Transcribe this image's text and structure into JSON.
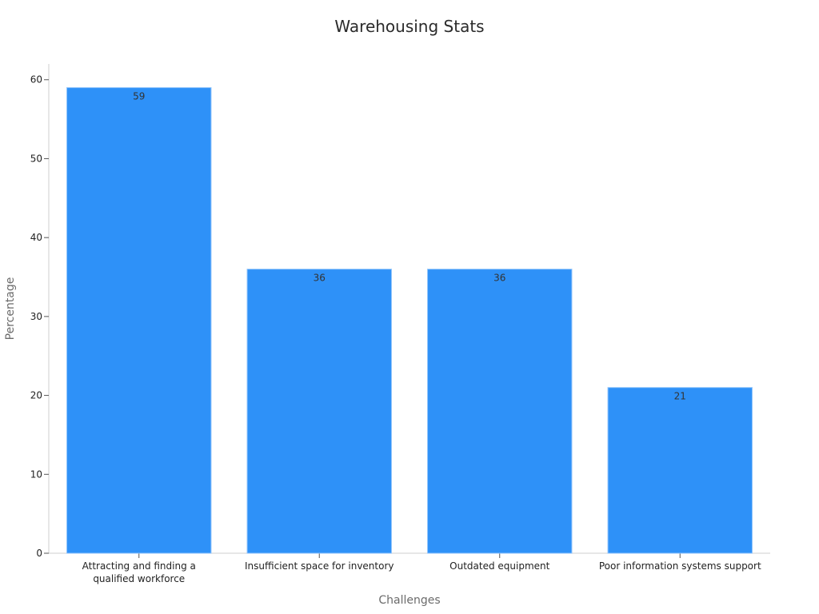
{
  "chart_data": {
    "type": "bar",
    "title": "Warehousing Stats",
    "xlabel": "Challenges",
    "ylabel": "Percentage",
    "categories": [
      [
        "Attracting and finding a",
        "qualified workforce"
      ],
      [
        "Insufficient space for inventory"
      ],
      [
        "Outdated equipment"
      ],
      [
        "Poor information systems support"
      ]
    ],
    "values": [
      59,
      36,
      36,
      21
    ],
    "ylim": [
      0,
      62
    ],
    "yticks": [
      0,
      10,
      20,
      30,
      40,
      50,
      60
    ],
    "bar_color": "#2e91f8",
    "grid": false,
    "legend": "none",
    "data_labels": true
  }
}
